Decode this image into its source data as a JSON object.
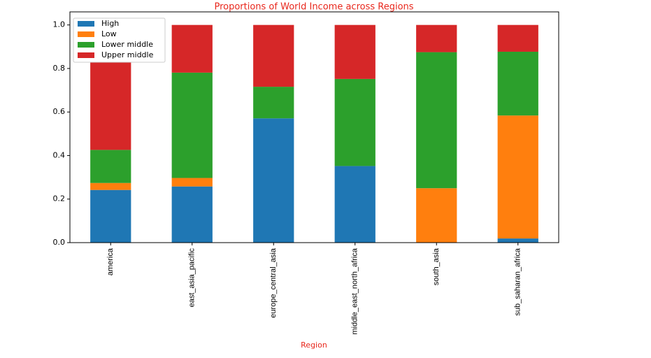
{
  "chart_data": {
    "type": "stacked_bar",
    "title": "Proportions of World Income across Regions",
    "x_label": "Region",
    "categories": [
      "america",
      "east_asia_pacific",
      "europe_central_asia",
      "middle_east_north_africa",
      "south_asia",
      "sub_saharan_africa"
    ],
    "series": [
      {
        "name": "High",
        "color": "#1f77b4",
        "values": [
          0.242,
          0.258,
          0.571,
          0.352,
          0,
          0.019
        ]
      },
      {
        "name": "Low",
        "color": "#ff7f0e",
        "values": [
          0.032,
          0.039,
          0,
          0,
          0.25,
          0.565
        ]
      },
      {
        "name": "Lower middle",
        "color": "#2ca02c",
        "values": [
          0.152,
          0.484,
          0.145,
          0.4,
          0.625,
          0.293
        ]
      },
      {
        "name": "Upper middle",
        "color": "#d62728",
        "values": [
          0.574,
          0.219,
          0.284,
          0.248,
          0.125,
          0.123
        ]
      }
    ],
    "ylim": [
      0,
      1.06
    ],
    "yticks": [
      {
        "value": 0,
        "label": "0.0"
      },
      {
        "value": 0.2,
        "label": "0.2"
      },
      {
        "value": 0.4,
        "label": "0.4"
      },
      {
        "value": 0.6,
        "label": "0.6"
      },
      {
        "value": 0.8,
        "label": "0.8"
      },
      {
        "value": 1,
        "label": "1.0"
      }
    ],
    "legend": "upper left"
  }
}
